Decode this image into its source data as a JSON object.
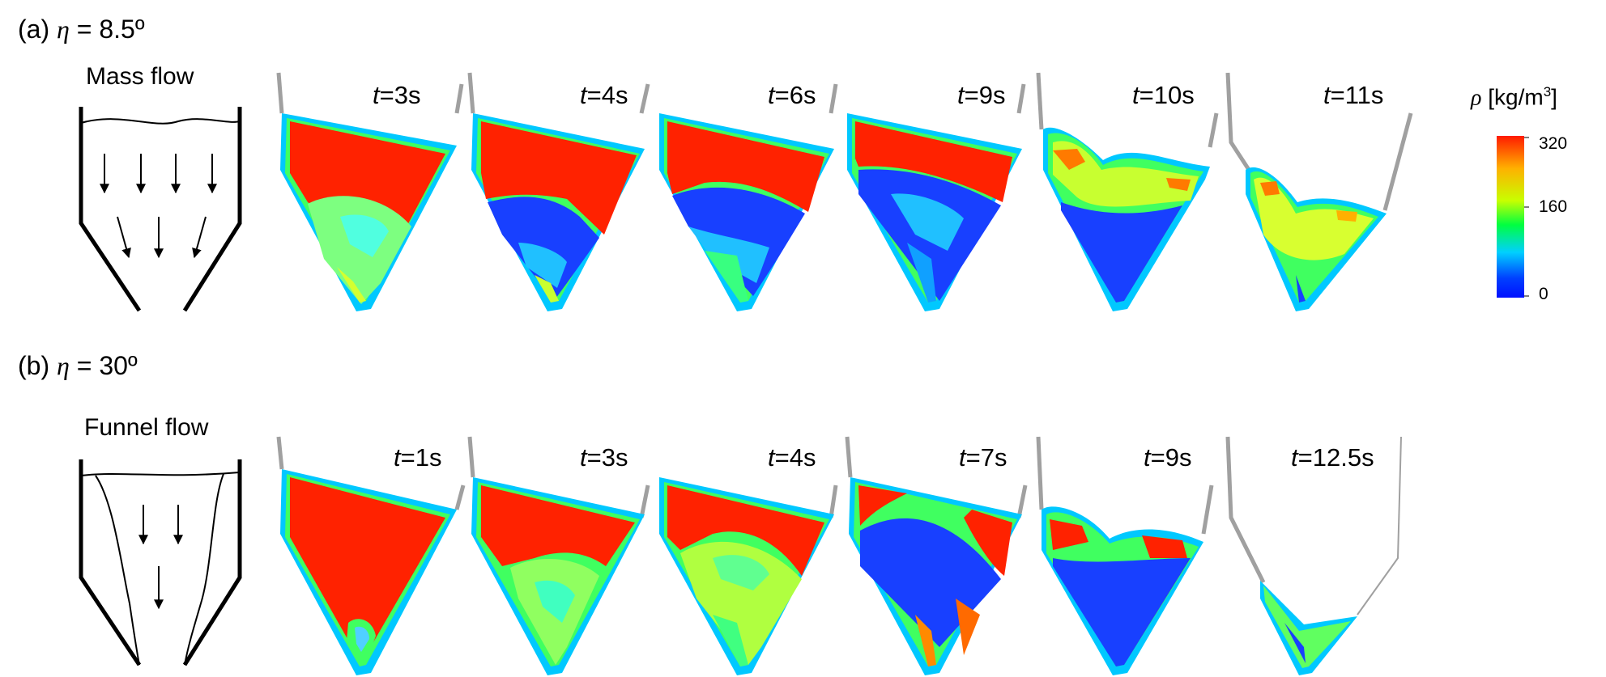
{
  "rows": [
    {
      "label_prefix": "(a) ",
      "eta_symbol": "η",
      "label_suffix": " = 8.5º",
      "flow_type": "Mass flow",
      "panels": [
        {
          "t": "t",
          "rest": "=3s",
          "state": "full-cavity-bottom"
        },
        {
          "t": "t",
          "rest": "=4s",
          "state": "blue-bottom"
        },
        {
          "t": "t",
          "rest": "=6s",
          "state": "blue-mid"
        },
        {
          "t": "t",
          "rest": "=9s",
          "state": "red-band-top"
        },
        {
          "t": "t",
          "rest": "=10s",
          "state": "v-shape-partial"
        },
        {
          "t": "t",
          "rest": "=11s",
          "state": "v-shape-low"
        }
      ]
    },
    {
      "label_prefix": "(b) ",
      "eta_symbol": "η",
      "label_suffix": " = 30º",
      "flow_type": "Funnel flow",
      "panels": [
        {
          "t": "t",
          "rest": "=1s",
          "state": "full"
        },
        {
          "t": "t",
          "rest": "=3s",
          "state": "green-core"
        },
        {
          "t": "t",
          "rest": "=4s",
          "state": "green-core-large"
        },
        {
          "t": "t",
          "rest": "=7s",
          "state": "blue-funnel"
        },
        {
          "t": "t",
          "rest": "=9s",
          "state": "v-shape"
        },
        {
          "t": "t",
          "rest": "=12.5s",
          "state": "residual"
        }
      ]
    }
  ],
  "colorbar": {
    "symbol": "ρ",
    "unit": " [kg/m",
    "unit_exp": "3",
    "unit_close": "]",
    "ticks": [
      "320",
      "160",
      "0"
    ],
    "colors": [
      "#ff1a00",
      "#ffb000",
      "#c8ff00",
      "#00ff40",
      "#00d0ff",
      "#0040ff",
      "#0010ff"
    ]
  }
}
